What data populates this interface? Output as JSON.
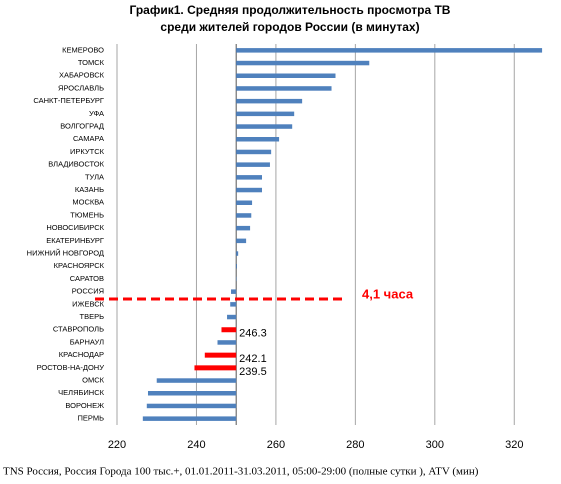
{
  "chart_data": {
    "type": "hbar",
    "title": "График1. Средняя продолжительность просмотра ТВ",
    "subtitle": "среди жителей городов России (в минутах)",
    "categories": [
      "КЕМЕРОВО",
      "ТОМСК",
      "ХАБАРОВСК",
      "ЯРОСЛАВЛЬ",
      "САНКТ-ПЕТЕРБУРГ",
      "УФА",
      "ВОЛГОГРАД",
      "САМАРА",
      "ИРКУТСК",
      "ВЛАДИВОСТОК",
      "ТУЛА",
      "КАЗАНЬ",
      "МОСКВА",
      "ТЮМЕНЬ",
      "НОВОСИБИРСК",
      "ЕКАТЕРИНБУРГ",
      "НИЖНИЙ НОВГОРОД",
      "КРАСНОЯРСК",
      "САРАТОВ",
      "РОССИЯ",
      "ИЖЕВСК",
      "ТВЕРЬ",
      "СТАВРОПОЛЬ",
      "БАРНАУЛ",
      "КРАСНОДАР",
      "РОСТОВ-НА-ДОНУ",
      "ОМСК",
      "ЧЕЛЯБИНСК",
      "ВОРОНЕЖ",
      "ПЕРМЬ"
    ],
    "values": [
      327,
      283.5,
      275,
      274,
      266.6,
      264.6,
      264.1,
      260.8,
      258.8,
      258.5,
      256.5,
      256.5,
      254,
      253.8,
      253.5,
      252.5,
      250.5,
      250.2,
      250.1,
      248.7,
      248.5,
      247.7,
      246.3,
      245.3,
      242.1,
      239.5,
      230,
      227.8,
      227.5,
      226.5
    ],
    "colors": [
      "#4f81bd",
      "#4f81bd",
      "#4f81bd",
      "#4f81bd",
      "#4f81bd",
      "#4f81bd",
      "#4f81bd",
      "#4f81bd",
      "#4f81bd",
      "#4f81bd",
      "#4f81bd",
      "#4f81bd",
      "#4f81bd",
      "#4f81bd",
      "#4f81bd",
      "#4f81bd",
      "#4f81bd",
      "#4f81bd",
      "#4f81bd",
      "#4f81bd",
      "#4f81bd",
      "#4f81bd",
      "#ff0000",
      "#4f81bd",
      "#ff0000",
      "#ff0000",
      "#4f81bd",
      "#4f81bd",
      "#4f81bd",
      "#4f81bd"
    ],
    "labeled": [
      false,
      false,
      false,
      false,
      false,
      false,
      false,
      false,
      false,
      false,
      false,
      false,
      false,
      false,
      false,
      false,
      false,
      false,
      false,
      false,
      false,
      false,
      true,
      false,
      true,
      true,
      false,
      false,
      false,
      false
    ],
    "base": 250,
    "xlim": [
      220,
      330
    ],
    "xticks": [
      220,
      240,
      260,
      280,
      300,
      320
    ],
    "grid": true,
    "annotation": "4,1 часа",
    "footnote": "TNS Россия, Россия Города 100 тыс.+, 01.01.2011-31.03.2011, 05:00-29:00 (полные сутки ), ATV (мин)"
  }
}
